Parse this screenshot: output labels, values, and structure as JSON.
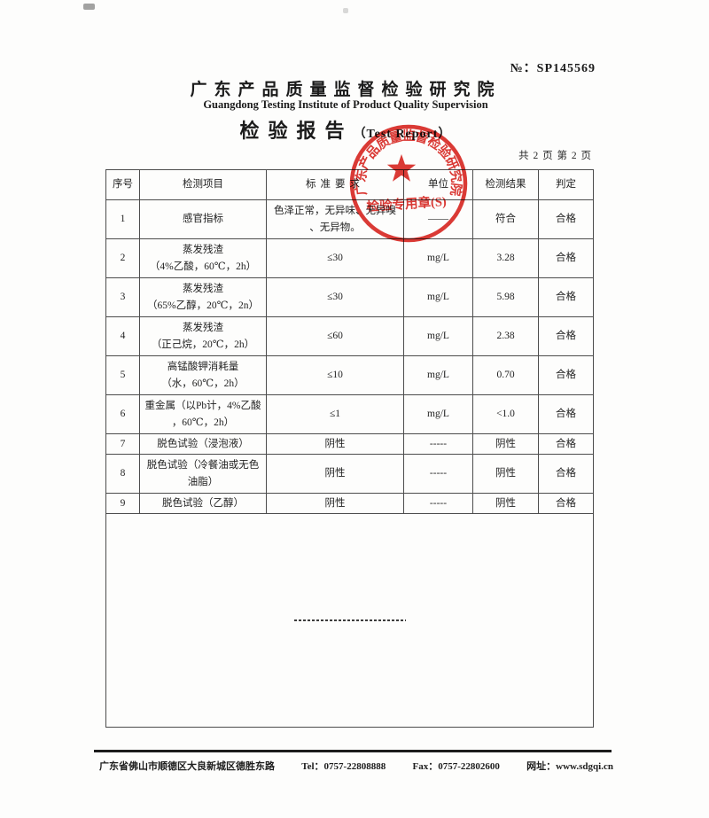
{
  "header": {
    "report_no_label": "№：",
    "report_no": "SP145569",
    "institute_cn": "广东产品质量监督检验研究院",
    "institute_en": "Guangdong Testing Institute of Product Quality Supervision",
    "title_cn": "检验报告",
    "title_en": "（Test Report）",
    "page_indicator": "共 2 页 第 2 页"
  },
  "table": {
    "headers": [
      "序号",
      "检测项目",
      "标准要求",
      "单位",
      "检测结果",
      "判定"
    ],
    "rows": [
      {
        "no": "1",
        "item": [
          "感官指标"
        ],
        "standard": [
          "色泽正常，无异味、无异嗅",
          "、无异物。"
        ],
        "unit": "——",
        "result": "符合",
        "verdict": "合格"
      },
      {
        "no": "2",
        "item": [
          "蒸发残渣",
          "（4%乙酸，60℃，2h）"
        ],
        "standard": [
          "≤30"
        ],
        "unit": "mg/L",
        "result": "3.28",
        "verdict": "合格"
      },
      {
        "no": "3",
        "item": [
          "蒸发残渣",
          "（65%乙醇，20℃，2n）"
        ],
        "standard": [
          "≤30"
        ],
        "unit": "mg/L",
        "result": "5.98",
        "verdict": "合格"
      },
      {
        "no": "4",
        "item": [
          "蒸发残渣",
          "（正己烷，20℃，2h）"
        ],
        "standard": [
          "≤60"
        ],
        "unit": "mg/L",
        "result": "2.38",
        "verdict": "合格"
      },
      {
        "no": "5",
        "item": [
          "高锰酸钾消耗量",
          "（水，60℃，2h）"
        ],
        "standard": [
          "≤10"
        ],
        "unit": "mg/L",
        "result": "0.70",
        "verdict": "合格"
      },
      {
        "no": "6",
        "item": [
          "重金属（以Pb计，4%乙酸",
          "，60℃，2h）"
        ],
        "standard": [
          "≤1"
        ],
        "unit": "mg/L",
        "result": "<1.0",
        "verdict": "合格"
      },
      {
        "no": "7",
        "item": [
          "脱色试验（浸泡液）"
        ],
        "standard": [
          "阴性"
        ],
        "unit": "-----",
        "result": "阴性",
        "verdict": "合格"
      },
      {
        "no": "8",
        "item": [
          "脱色试验（冷餐油或无色",
          "油脂）"
        ],
        "standard": [
          "阴性"
        ],
        "unit": "-----",
        "result": "阴性",
        "verdict": "合格"
      },
      {
        "no": "9",
        "item": [
          "脱色试验（乙醇）"
        ],
        "standard": [
          "阴性"
        ],
        "unit": "-----",
        "result": "阴性",
        "verdict": "合格"
      }
    ]
  },
  "stamp": {
    "ring_text": "广东产品质量监督检验研究院",
    "label": "检验专用章(S)",
    "color": "#d8241f"
  },
  "footer": {
    "address": "广东省佛山市顺德区大良新城区德胜东路",
    "tel": "Tel：0757-22808888",
    "fax": "Fax：0757-22802600",
    "web": "网址：www.sdgqi.cn"
  }
}
